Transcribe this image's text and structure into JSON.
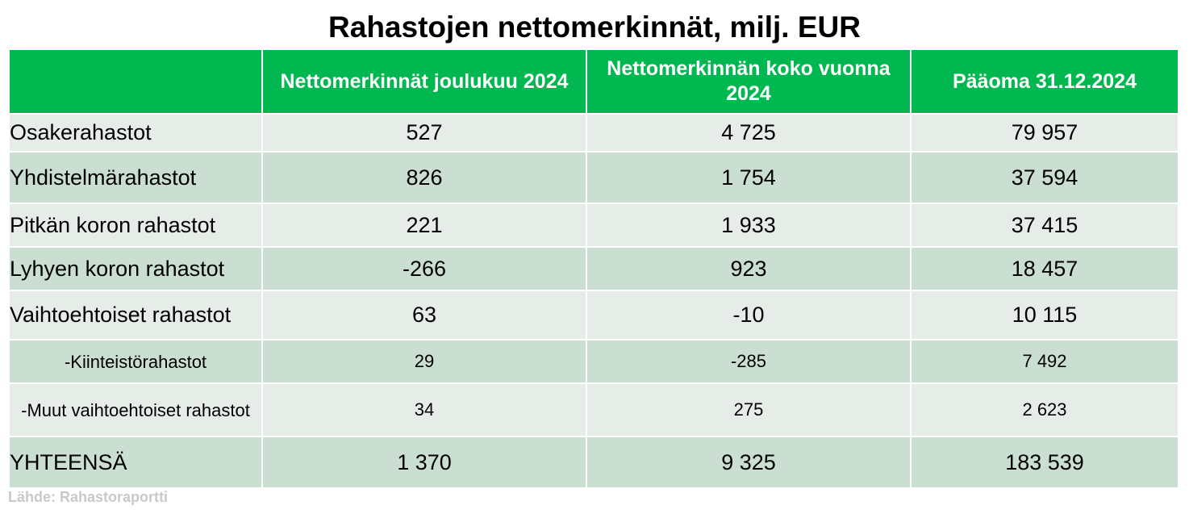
{
  "title": "Rahastojen nettomerkinnät, milj. EUR",
  "columns": [
    "",
    "Nettomerkinnät joulukuu 2024",
    "Nettomerkinnän koko vuonna 2024",
    "Pääoma 31.12.2024"
  ],
  "rows": [
    {
      "label": "Osakerahastot",
      "values": [
        "527",
        "4 725",
        "79 957"
      ]
    },
    {
      "label": "Yhdistelmärahastot",
      "values": [
        "826",
        "1 754",
        "37 594"
      ]
    },
    {
      "label": "Pitkän koron rahastot",
      "values": [
        "221",
        "1 933",
        "37 415"
      ]
    },
    {
      "label": "Lyhyen koron rahastot",
      "values": [
        "-266",
        "923",
        "18 457"
      ]
    },
    {
      "label": "Vaihtoehtoiset rahastot",
      "values": [
        "63",
        "-10",
        "10 115"
      ]
    },
    {
      "label": "-Kiinteistörahastot",
      "values": [
        "29",
        "-285",
        "7 492"
      ]
    },
    {
      "label": "-Muut vaihtoehtoiset rahastot",
      "values": [
        "34",
        "275",
        "2 623"
      ]
    },
    {
      "label": "YHTEENSÄ",
      "values": [
        "1 370",
        "9 325",
        "183 539"
      ]
    }
  ],
  "source": "Lähde: Rahastoraportti",
  "colors": {
    "header_bg": "#00b84f",
    "header_text": "#ffffff",
    "row_light": "#e6ede8",
    "row_dark": "#cadfd1",
    "source_text": "#c9c9c9"
  }
}
